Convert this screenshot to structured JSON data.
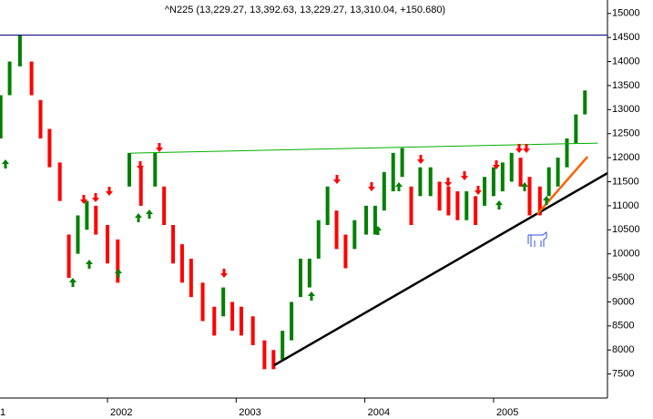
{
  "chart_data": {
    "type": "range-bar",
    "title": "^N225 (13,229.27, 13,392.63, 13,229.27, 13,310.04, +150.680)",
    "x": [
      2001.17,
      2001.24,
      2001.32,
      2001.41,
      2001.48,
      2001.55,
      2001.63,
      2001.7,
      2001.77,
      2001.84,
      2001.91,
      2002.0,
      2002.08,
      2002.17,
      2002.26,
      2002.37,
      2002.44,
      2002.51,
      2002.58,
      2002.65,
      2002.74,
      2002.83,
      2002.9,
      2002.97,
      2003.04,
      2003.13,
      2003.22,
      2003.29,
      2003.36,
      2003.43,
      2003.5,
      2003.57,
      2003.64,
      2003.71,
      2003.78,
      2003.85,
      2003.92,
      2004.01,
      2004.08,
      2004.15,
      2004.22,
      2004.29,
      2004.36,
      2004.43,
      2004.51,
      2004.58,
      2004.65,
      2004.72,
      2004.79,
      2004.86,
      2004.93,
      2005.0,
      2005.07,
      2005.14,
      2005.21,
      2005.28,
      2005.36,
      2005.43,
      2005.5,
      2005.57,
      2005.64,
      2005.71
    ],
    "high": [
      13300,
      14000,
      14550,
      14000,
      13200,
      12600,
      11900,
      10400,
      10800,
      11100,
      11000,
      10600,
      10300,
      12100,
      11800,
      12100,
      11400,
      10600,
      10200,
      9900,
      9400,
      8900,
      9300,
      9000,
      8900,
      8700,
      8200,
      8000,
      8400,
      9000,
      9900,
      9900,
      10700,
      11400,
      10900,
      10400,
      10700,
      11000,
      11000,
      11700,
      12100,
      12200,
      11400,
      11800,
      11800,
      11500,
      11400,
      11300,
      11300,
      11200,
      11600,
      11800,
      11900,
      12100,
      12000,
      11600,
      11400,
      11800,
      12000,
      12400,
      12900,
      13400
    ],
    "low": [
      12400,
      13300,
      13900,
      13300,
      12400,
      11800,
      11100,
      9500,
      10000,
      10500,
      10400,
      9800,
      9400,
      11400,
      11000,
      11400,
      10600,
      9800,
      9400,
      9100,
      8600,
      8300,
      8700,
      8400,
      8300,
      8100,
      7600,
      7600,
      7800,
      8200,
      9100,
      9300,
      9900,
      10600,
      10100,
      9700,
      10100,
      10400,
      10400,
      10900,
      11300,
      11600,
      10600,
      11200,
      11200,
      10900,
      10800,
      10700,
      10700,
      10600,
      11000,
      11200,
      11300,
      11500,
      11400,
      10800,
      10800,
      11200,
      11400,
      11800,
      12300,
      12900
    ],
    "up_color": "#008000",
    "down_color": "#ff0000",
    "lines": [
      {
        "color": "#000080",
        "x": [
          2001.165,
          2005.885
        ],
        "y": [
          14550,
          14550
        ]
      },
      {
        "color": "#00b000",
        "x": [
          2002.18,
          2005.81
        ],
        "y": [
          12095,
          12303
        ]
      },
      {
        "color": "#000000",
        "x": [
          2003.295,
          2005.885
        ],
        "y": [
          7682,
          11678
        ]
      },
      {
        "color": "#ff6000",
        "x": [
          2005.34,
          2005.73
        ],
        "y": [
          10826,
          12019
        ]
      }
    ],
    "xlim": [
      2001.165,
      2005.885
    ],
    "xticks": [
      {
        "value": 2001,
        "label": "1"
      },
      2002,
      2003,
      2004,
      2005
    ],
    "ylim": [
      7000,
      15280
    ],
    "yticks": [
      7500,
      8000,
      8500,
      9000,
      9500,
      10000,
      10500,
      11000,
      11500,
      12000,
      12500,
      13000,
      13500,
      14000,
      14500,
      15000
    ]
  }
}
